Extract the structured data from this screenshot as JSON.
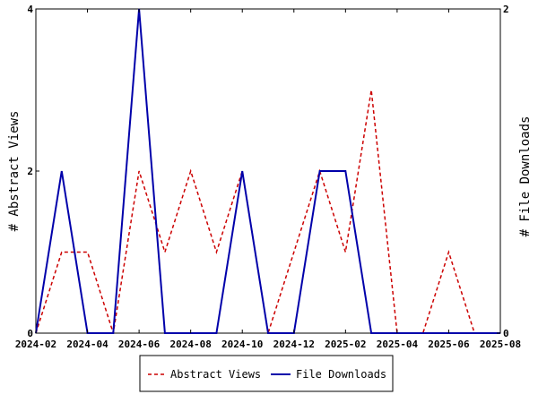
{
  "chart_data": {
    "type": "line",
    "x": [
      "2024-02",
      "2024-03",
      "2024-04",
      "2024-05",
      "2024-06",
      "2024-07",
      "2024-08",
      "2024-09",
      "2024-10",
      "2024-11",
      "2024-12",
      "2025-01",
      "2025-02",
      "2025-03",
      "2025-04",
      "2025-05",
      "2025-06",
      "2025-07",
      "2025-08"
    ],
    "x_ticks": [
      "2024-02",
      "2024-04",
      "2024-06",
      "2024-08",
      "2024-10",
      "2024-12",
      "2025-02",
      "2025-04",
      "2025-06",
      "2025-08"
    ],
    "series": [
      {
        "name": "Abstract Views",
        "axis": "left",
        "color": "#cc0000",
        "style": "dashed",
        "values": [
          0,
          1,
          1,
          0,
          2,
          1,
          2,
          1,
          2,
          0,
          1,
          2,
          1,
          3,
          0,
          0,
          1,
          0,
          0
        ]
      },
      {
        "name": "File Downloads",
        "axis": "right",
        "color": "#0000aa",
        "style": "solid",
        "values": [
          0,
          1,
          0,
          0,
          2,
          0,
          0,
          0,
          1,
          0,
          0,
          1,
          1,
          0,
          0,
          0,
          0,
          0,
          0
        ]
      }
    ],
    "ylabel_left": "# Abstract Views",
    "ylabel_right": "# File Downloads",
    "ylim_left": [
      0,
      4
    ],
    "ylim_right": [
      0,
      2
    ],
    "yticks_left": [
      "0",
      "2",
      "4"
    ],
    "yticks_right": [
      "0",
      "2"
    ],
    "legend": "bottom"
  }
}
